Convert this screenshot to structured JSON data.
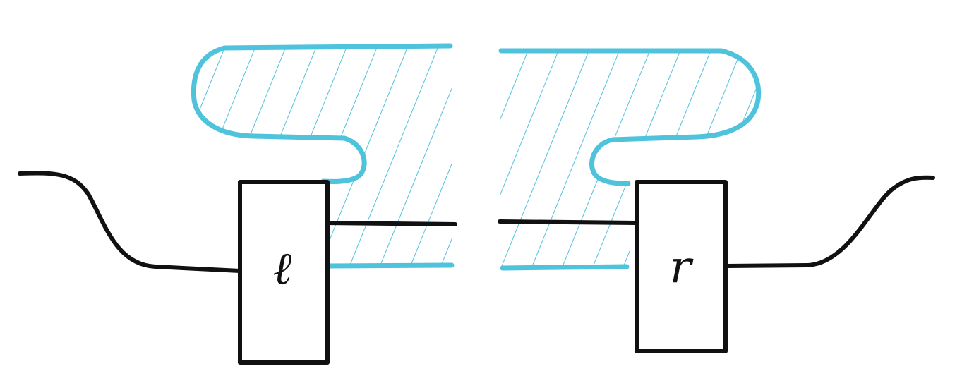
{
  "diagram": {
    "colors": {
      "hatch": "#4fc3dc",
      "ink": "#111111",
      "background": "#ffffff"
    },
    "boxes": {
      "left": {
        "label": "ℓ"
      },
      "right": {
        "label": "r"
      }
    }
  }
}
